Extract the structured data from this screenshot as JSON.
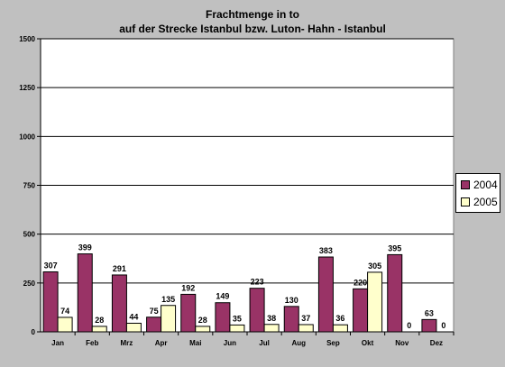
{
  "chart_data": {
    "type": "bar",
    "title": "Frachtmenge in to",
    "subtitle": "auf der Strecke Istanbul bzw. Luton- Hahn - Istanbul",
    "categories": [
      "Jan",
      "Feb",
      "Mrz",
      "Apr",
      "Mai",
      "Jun",
      "Jul",
      "Aug",
      "Sep",
      "Okt",
      "Nov",
      "Dez"
    ],
    "series": [
      {
        "name": "2004",
        "color": "#993366",
        "values": [
          307,
          399,
          291,
          75,
          192,
          149,
          223,
          130,
          383,
          220,
          395,
          63
        ]
      },
      {
        "name": "2005",
        "color": "#ffffcc",
        "values": [
          74,
          28,
          44,
          135,
          28,
          35,
          38,
          37,
          36,
          305,
          0,
          0
        ]
      }
    ],
    "ylim": [
      0,
      1500
    ],
    "yticks": [
      0,
      250,
      500,
      750,
      1000,
      1250,
      1500
    ],
    "grid": true,
    "legend_position": "right",
    "plot_background": "#ffffff",
    "chart_background": "#c0c0c0"
  }
}
